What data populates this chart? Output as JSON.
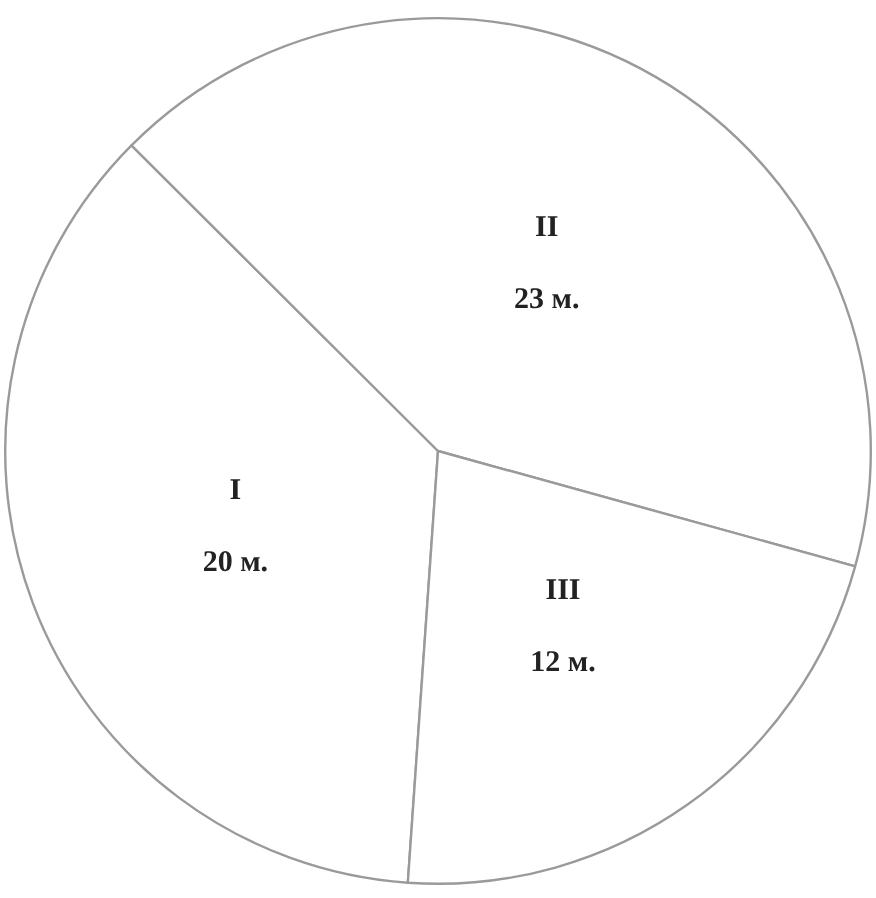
{
  "chart_data": {
    "type": "pie",
    "categories": [
      "I",
      "II",
      "III"
    ],
    "values": [
      20,
      23,
      12
    ],
    "value_labels": [
      "20 м.",
      "23 м.",
      "12 м."
    ],
    "colors": [
      "#ffffff",
      "#ffffff",
      "#ffffff"
    ],
    "legend": false
  }
}
